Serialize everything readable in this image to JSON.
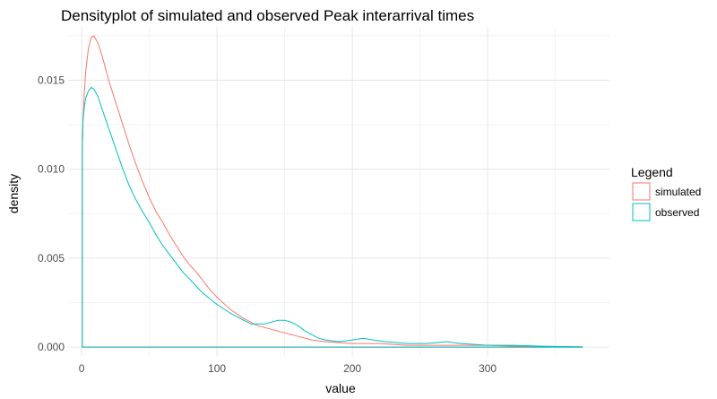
{
  "chart_data": {
    "type": "line",
    "title": "Densityplot of simulated and observed Peak interarrival times",
    "xlabel": "value",
    "ylabel": "density",
    "xlim": [
      -10,
      390
    ],
    "ylim": [
      -0.0005,
      0.018
    ],
    "x_ticks": [
      0,
      100,
      200,
      300
    ],
    "x_tick_labels": [
      "0",
      "100",
      "200",
      "300"
    ],
    "y_ticks": [
      0.0,
      0.005,
      0.01,
      0.015
    ],
    "y_tick_labels": [
      "0.000",
      "0.005",
      "0.010",
      "0.015"
    ],
    "grid": true,
    "legend": {
      "title": "Legend",
      "placement": "right"
    },
    "series": [
      {
        "name": "simulated",
        "color": "#F8766D",
        "points": [
          [
            0.5,
            0.0113
          ],
          [
            1,
            0.0128
          ],
          [
            2,
            0.0143
          ],
          [
            3,
            0.0155
          ],
          [
            5,
            0.0168
          ],
          [
            7,
            0.0174
          ],
          [
            9,
            0.0175
          ],
          [
            12,
            0.0171
          ],
          [
            15,
            0.0164
          ],
          [
            20,
            0.015
          ],
          [
            25,
            0.0138
          ],
          [
            30,
            0.0126
          ],
          [
            35,
            0.0114
          ],
          [
            40,
            0.0103
          ],
          [
            45,
            0.0093
          ],
          [
            50,
            0.0084
          ],
          [
            55,
            0.0076
          ],
          [
            60,
            0.007
          ],
          [
            65,
            0.0063
          ],
          [
            70,
            0.0057
          ],
          [
            75,
            0.0051
          ],
          [
            80,
            0.0046
          ],
          [
            85,
            0.0042
          ],
          [
            90,
            0.0037
          ],
          [
            95,
            0.0032
          ],
          [
            100,
            0.0028
          ],
          [
            110,
            0.0021
          ],
          [
            120,
            0.0016
          ],
          [
            130,
            0.0012
          ],
          [
            140,
            0.001
          ],
          [
            150,
            0.0008
          ],
          [
            160,
            0.0006
          ],
          [
            170,
            0.0004
          ],
          [
            180,
            0.0003
          ],
          [
            200,
            0.0002
          ],
          [
            220,
            0.0002
          ],
          [
            240,
            0.0001
          ],
          [
            260,
            0.0001
          ],
          [
            280,
            0.0001
          ],
          [
            300,
            0.0001
          ],
          [
            320,
            5e-05
          ],
          [
            340,
            3e-05
          ],
          [
            370,
            1e-05
          ]
        ]
      },
      {
        "name": "observed",
        "color": "#00BFC4",
        "points": [
          [
            0.5,
            0.0112
          ],
          [
            1,
            0.0127
          ],
          [
            2,
            0.0135
          ],
          [
            3,
            0.014
          ],
          [
            5,
            0.0144
          ],
          [
            7,
            0.0146
          ],
          [
            9,
            0.0145
          ],
          [
            12,
            0.0141
          ],
          [
            15,
            0.0134
          ],
          [
            20,
            0.0123
          ],
          [
            25,
            0.0112
          ],
          [
            30,
            0.0101
          ],
          [
            35,
            0.0091
          ],
          [
            40,
            0.0083
          ],
          [
            45,
            0.0076
          ],
          [
            50,
            0.007
          ],
          [
            55,
            0.0063
          ],
          [
            60,
            0.0057
          ],
          [
            65,
            0.0052
          ],
          [
            70,
            0.0047
          ],
          [
            75,
            0.0042
          ],
          [
            80,
            0.0038
          ],
          [
            85,
            0.0034
          ],
          [
            90,
            0.003
          ],
          [
            95,
            0.0027
          ],
          [
            100,
            0.0024
          ],
          [
            110,
            0.0019
          ],
          [
            120,
            0.0015
          ],
          [
            125,
            0.0013
          ],
          [
            130,
            0.0013
          ],
          [
            135,
            0.0013
          ],
          [
            140,
            0.0014
          ],
          [
            145,
            0.0015
          ],
          [
            150,
            0.0015
          ],
          [
            155,
            0.0014
          ],
          [
            160,
            0.0012
          ],
          [
            165,
            0.0009
          ],
          [
            170,
            0.0007
          ],
          [
            175,
            0.0005
          ],
          [
            180,
            0.0004
          ],
          [
            190,
            0.0003
          ],
          [
            200,
            0.0004
          ],
          [
            208,
            0.0005
          ],
          [
            215,
            0.0004
          ],
          [
            225,
            0.0003
          ],
          [
            240,
            0.0002
          ],
          [
            255,
            0.0002
          ],
          [
            270,
            0.0003
          ],
          [
            280,
            0.0002
          ],
          [
            300,
            0.0001
          ],
          [
            320,
            0.0001
          ],
          [
            340,
            5e-05
          ],
          [
            370,
            1e-05
          ]
        ]
      }
    ]
  }
}
